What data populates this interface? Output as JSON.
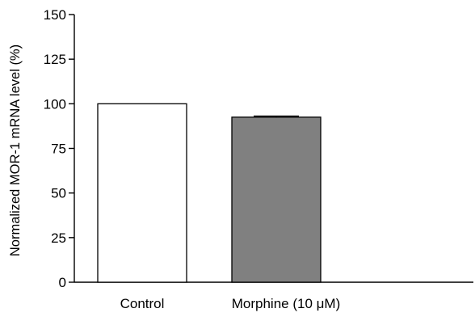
{
  "chart_data": {
    "type": "bar",
    "title": "",
    "xlabel": "",
    "ylabel": "Normalized MOR-1 mRNA level (%)",
    "ylim": [
      0,
      150
    ],
    "yticks": [
      0,
      25,
      50,
      75,
      100,
      125,
      150
    ],
    "ytick_labels": [
      "0",
      "25",
      "50",
      "75",
      "100",
      "125",
      "150"
    ],
    "categories": [
      "Control",
      "Morphine (10 μM)"
    ],
    "values": [
      100,
      92.5
    ],
    "errors": [
      0,
      0.6
    ],
    "bar_colors": [
      "#ffffff",
      "#808080"
    ],
    "bar_edge_color": "#000000",
    "grid": false,
    "legend": "none"
  }
}
